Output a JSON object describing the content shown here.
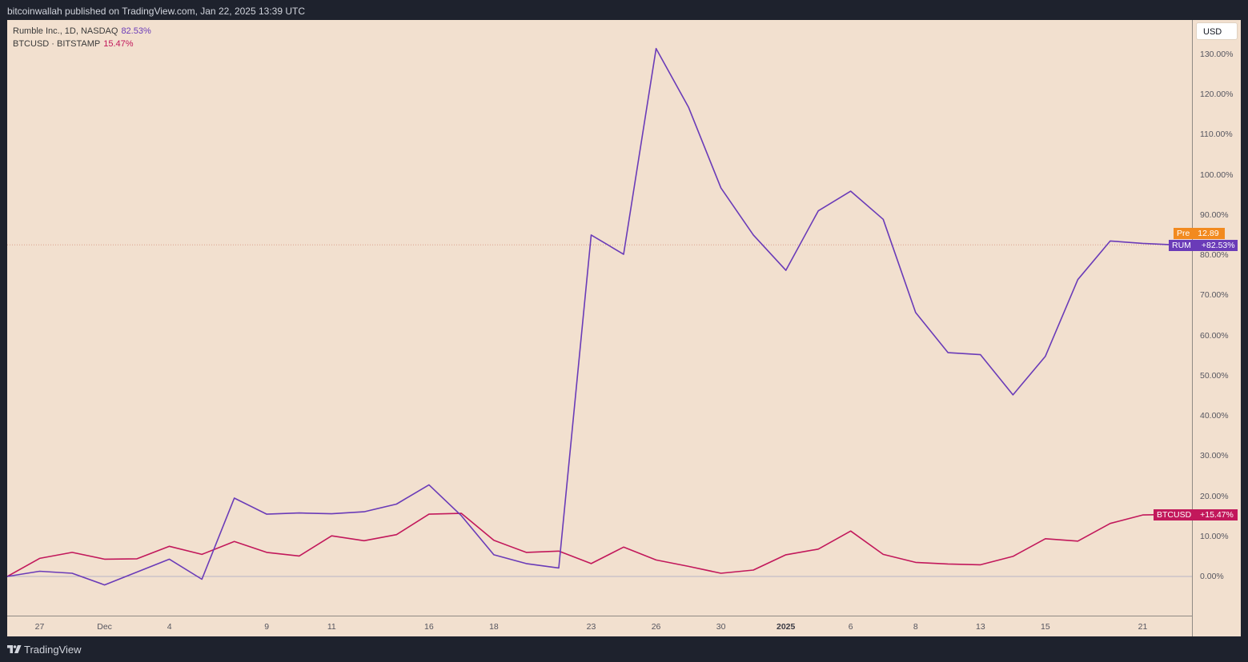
{
  "header": {
    "published_text": "bitcoinwallah published on TradingView.com, Jan 22, 2025 13:39 UTC"
  },
  "legend": {
    "rum_label": "Rumble Inc., 1D, NASDAQ",
    "rum_value": "82.53%",
    "btc_label": "BTCUSD · BITSTAMP",
    "btc_value": "15.47%"
  },
  "currency_button": "USD",
  "badges": {
    "pre_label": "Pre",
    "pre_value": "12.89",
    "rum_label": "RUM",
    "rum_value": "+82.53%",
    "btc_label": "BTCUSD",
    "btc_value": "+15.47%"
  },
  "footer": {
    "brand": "TradingView"
  },
  "colors": {
    "rum": "#6a3bb8",
    "btc": "#c2185b",
    "pre": "#f28a1f",
    "background": "#f2e0cf",
    "frame": "#1e222d"
  },
  "chart_data": {
    "type": "line",
    "title": "",
    "xlabel": "",
    "ylabel": "",
    "ylim": [
      -10,
      135
    ],
    "y_unit": "%",
    "grid": false,
    "y_ticks": [
      "130.00%",
      "120.00%",
      "110.00%",
      "100.00%",
      "90.00%",
      "80.00%",
      "70.00%",
      "60.00%",
      "50.00%",
      "40.00%",
      "30.00%",
      "20.00%",
      "10.00%",
      "0.00%"
    ],
    "x_ticks": [
      {
        "label": "27",
        "index": 1
      },
      {
        "label": "Dec",
        "index": 3
      },
      {
        "label": "4",
        "index": 5
      },
      {
        "label": "9",
        "index": 8
      },
      {
        "label": "11",
        "index": 10
      },
      {
        "label": "16",
        "index": 13
      },
      {
        "label": "18",
        "index": 15
      },
      {
        "label": "23",
        "index": 18
      },
      {
        "label": "26",
        "index": 20
      },
      {
        "label": "30",
        "index": 22
      },
      {
        "label": "2025",
        "index": 24,
        "bold": true
      },
      {
        "label": "6",
        "index": 26
      },
      {
        "label": "8",
        "index": 28
      },
      {
        "label": "13",
        "index": 30
      },
      {
        "label": "15",
        "index": 32
      },
      {
        "label": "21",
        "index": 35
      }
    ],
    "series": [
      {
        "name": "RUM",
        "color": "#6a3bb8",
        "points": [
          [
            0,
            0.0
          ],
          [
            1,
            1.3
          ],
          [
            2,
            0.8
          ],
          [
            3,
            -2.1
          ],
          [
            4,
            1.1
          ],
          [
            5,
            4.3
          ],
          [
            6,
            -0.7
          ],
          [
            7,
            19.5
          ],
          [
            8,
            15.5
          ],
          [
            9,
            15.8
          ],
          [
            10,
            15.6
          ],
          [
            11,
            16.1
          ],
          [
            12,
            18.0
          ],
          [
            13,
            22.8
          ],
          [
            14,
            15.1
          ],
          [
            15,
            5.4
          ],
          [
            16,
            3.2
          ],
          [
            17,
            2.1
          ],
          [
            18,
            85.0
          ],
          [
            19,
            80.2
          ],
          [
            20,
            131.4
          ],
          [
            21,
            116.8
          ],
          [
            22,
            96.7
          ],
          [
            23,
            85.0
          ],
          [
            24,
            76.2
          ],
          [
            25,
            91.0
          ],
          [
            26,
            95.9
          ],
          [
            27,
            88.9
          ],
          [
            28,
            65.7
          ],
          [
            29,
            55.7
          ],
          [
            30,
            55.2
          ],
          [
            31,
            45.2
          ],
          [
            32,
            54.8
          ],
          [
            33,
            73.9
          ],
          [
            34,
            83.5
          ],
          [
            35,
            82.9
          ],
          [
            36,
            82.53
          ]
        ]
      },
      {
        "name": "BTCUSD",
        "color": "#c2185b",
        "points": [
          [
            0,
            0.0
          ],
          [
            1,
            4.5
          ],
          [
            2,
            6.0
          ],
          [
            3,
            4.3
          ],
          [
            4,
            4.4
          ],
          [
            5,
            7.5
          ],
          [
            6,
            5.5
          ],
          [
            7,
            8.7
          ],
          [
            8,
            6.0
          ],
          [
            9,
            5.1
          ],
          [
            10,
            10.1
          ],
          [
            11,
            8.9
          ],
          [
            12,
            10.4
          ],
          [
            13,
            15.5
          ],
          [
            14,
            15.7
          ],
          [
            15,
            9.0
          ],
          [
            16,
            6.0
          ],
          [
            17,
            6.3
          ],
          [
            18,
            3.2
          ],
          [
            19,
            7.3
          ],
          [
            20,
            4.1
          ],
          [
            21,
            2.5
          ],
          [
            22,
            0.8
          ],
          [
            23,
            1.6
          ],
          [
            24,
            5.4
          ],
          [
            25,
            6.8
          ],
          [
            26,
            11.3
          ],
          [
            27,
            5.5
          ],
          [
            28,
            3.5
          ],
          [
            29,
            3.1
          ],
          [
            30,
            2.9
          ],
          [
            31,
            5.0
          ],
          [
            32,
            9.4
          ],
          [
            33,
            8.8
          ],
          [
            34,
            13.2
          ],
          [
            35,
            15.3
          ],
          [
            36,
            15.47
          ]
        ]
      }
    ],
    "reference_lines": [
      {
        "value": 0.0,
        "style": "dotted"
      },
      {
        "value": 82.53,
        "style": "dotted"
      }
    ]
  }
}
